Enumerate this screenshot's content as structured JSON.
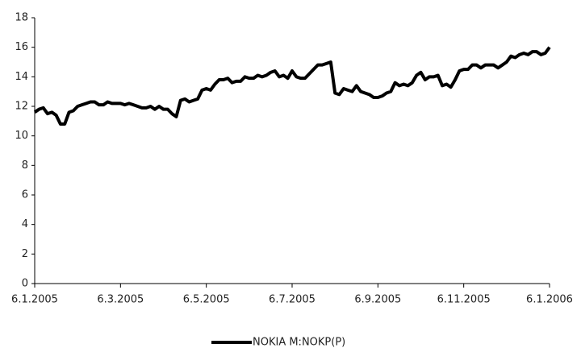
{
  "chart_data": {
    "type": "line",
    "categories": [
      "6.1.2005",
      null,
      null,
      null,
      null,
      null,
      null,
      null,
      null,
      null,
      null,
      null,
      null,
      null,
      null,
      null,
      null,
      null,
      null,
      null,
      "6.3.2005",
      null,
      null,
      null,
      null,
      null,
      null,
      null,
      null,
      null,
      null,
      null,
      null,
      null,
      null,
      null,
      null,
      null,
      null,
      null,
      "6.5.2005",
      null,
      null,
      null,
      null,
      null,
      null,
      null,
      null,
      null,
      null,
      null,
      null,
      null,
      null,
      null,
      null,
      null,
      null,
      null,
      "6.7.2005",
      null,
      null,
      null,
      null,
      null,
      null,
      null,
      null,
      null,
      null,
      null,
      null,
      null,
      null,
      null,
      null,
      null,
      null,
      null,
      "6.9.2005",
      null,
      null,
      null,
      null,
      null,
      null,
      null,
      null,
      null,
      null,
      null,
      null,
      null,
      null,
      null,
      null,
      null,
      null,
      null,
      "6.11.2005",
      null,
      null,
      null,
      null,
      null,
      null,
      null,
      null,
      null,
      null,
      null,
      null,
      null,
      null,
      null,
      null,
      null,
      null,
      null,
      "6.1.2006"
    ],
    "series": [
      {
        "name": "NOKIA M:NOKP(P)",
        "color": "#000000",
        "values": [
          11.6,
          11.8,
          11.9,
          11.5,
          11.6,
          11.4,
          10.8,
          10.8,
          11.6,
          11.7,
          12.0,
          12.1,
          12.2,
          12.3,
          12.3,
          12.1,
          12.1,
          12.3,
          12.2,
          12.2,
          12.2,
          12.1,
          12.2,
          12.1,
          12.0,
          11.9,
          11.9,
          12.0,
          11.8,
          12.0,
          11.8,
          11.8,
          11.5,
          11.3,
          12.4,
          12.5,
          12.3,
          12.4,
          12.5,
          13.1,
          13.2,
          13.1,
          13.5,
          13.8,
          13.8,
          13.9,
          13.6,
          13.7,
          13.7,
          14.0,
          13.9,
          13.9,
          14.1,
          14.0,
          14.1,
          14.3,
          14.4,
          14.0,
          14.1,
          13.9,
          14.4,
          14.0,
          13.9,
          13.9,
          14.2,
          14.5,
          14.8,
          14.8,
          14.9,
          15.0,
          12.9,
          12.8,
          13.2,
          13.1,
          13.0,
          13.4,
          13.0,
          12.9,
          12.8,
          12.6,
          12.6,
          12.7,
          12.9,
          13.0,
          13.6,
          13.4,
          13.5,
          13.4,
          13.6,
          14.1,
          14.3,
          13.8,
          14.0,
          14.0,
          14.1,
          13.4,
          13.5,
          13.3,
          13.8,
          14.4,
          14.5,
          14.5,
          14.8,
          14.8,
          14.6,
          14.8,
          14.8,
          14.8,
          14.6,
          14.8,
          15.0,
          15.4,
          15.3,
          15.5,
          15.6,
          15.5,
          15.7,
          15.7,
          15.5,
          15.6,
          16.0
        ]
      }
    ],
    "ylim": [
      0,
      18
    ],
    "yticks": [
      0,
      2,
      4,
      6,
      8,
      10,
      12,
      14,
      16,
      18
    ],
    "grid": false,
    "legend": "bottom"
  }
}
